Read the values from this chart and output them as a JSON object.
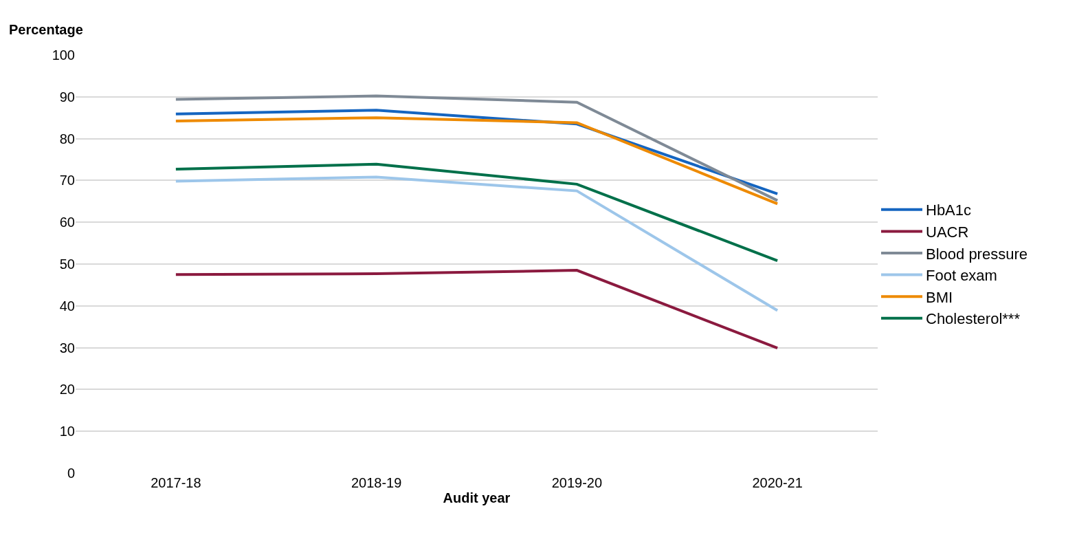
{
  "chart_data": {
    "type": "line",
    "xlabel": "Audit year",
    "ylabel": "Percentage",
    "categories": [
      "2017-18",
      "2018-19",
      "2019-20",
      "2020-21"
    ],
    "series": [
      {
        "name": "HbA1c",
        "color": "#1565c0",
        "values": [
          85.9,
          86.8,
          83.5,
          66.8
        ]
      },
      {
        "name": "UACR",
        "color": "#8b1a3f",
        "values": [
          47.5,
          47.7,
          48.5,
          29.9
        ]
      },
      {
        "name": "Blood pressure",
        "color": "#7f8a96",
        "values": [
          89.4,
          90.2,
          88.7,
          65.2
        ]
      },
      {
        "name": "Foot exam",
        "color": "#9dc6ea",
        "values": [
          69.8,
          70.8,
          67.5,
          38.9
        ]
      },
      {
        "name": "BMI",
        "color": "#ee8a00",
        "values": [
          84.2,
          85.0,
          83.8,
          64.4
        ]
      },
      {
        "name": "Cholesterol***",
        "color": "#00704a",
        "values": [
          72.7,
          73.9,
          69.1,
          50.8
        ]
      }
    ],
    "ylim": [
      0,
      100
    ],
    "yticks": [
      0,
      10,
      20,
      30,
      40,
      50,
      60,
      70,
      80,
      90,
      100
    ],
    "grid": "y",
    "legend": "right",
    "marker": "none",
    "line_style": "solid"
  }
}
